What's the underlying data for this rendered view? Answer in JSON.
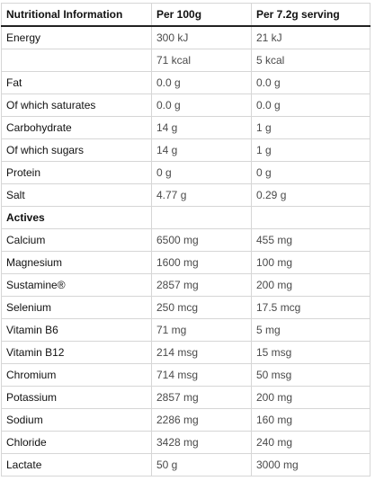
{
  "headers": [
    "Nutritional Information",
    "Per 100g",
    "Per 7.2g serving"
  ],
  "rows": [
    {
      "label": "Energy",
      "per100": "300 kJ",
      "perServing": "21 kJ"
    },
    {
      "label": "",
      "per100": "71 kcal",
      "perServing": "5 kcal"
    },
    {
      "label": "Fat",
      "per100": "0.0 g",
      "perServing": "0.0 g"
    },
    {
      "label": "Of which saturates",
      "per100": "0.0 g",
      "perServing": "0.0 g"
    },
    {
      "label": "Carbohydrate",
      "per100": "14 g",
      "perServing": "1 g"
    },
    {
      "label": "Of which sugars",
      "per100": "14 g",
      "perServing": "1 g"
    },
    {
      "label": "Protein",
      "per100": "0 g",
      "perServing": "0 g"
    },
    {
      "label": "Salt",
      "per100": "4.77 g",
      "perServing": "0.29 g"
    },
    {
      "label": "Actives",
      "per100": "",
      "perServing": "",
      "section": true
    },
    {
      "label": "Calcium",
      "per100": "6500 mg",
      "perServing": "455 mg"
    },
    {
      "label": "Magnesium",
      "per100": "1600 mg",
      "perServing": "100 mg"
    },
    {
      "label": "Sustamine®",
      "per100": "2857 mg",
      "perServing": "200 mg"
    },
    {
      "label": "Selenium",
      "per100": "250 mcg",
      "perServing": "17.5 mcg"
    },
    {
      "label": "Vitamin B6",
      "per100": "71 mg",
      "perServing": "5 mg"
    },
    {
      "label": "Vitamin B12",
      "per100": "214 msg",
      "perServing": "15 msg"
    },
    {
      "label": "Chromium",
      "per100": "714 msg",
      "perServing": "50 msg"
    },
    {
      "label": "Potassium",
      "per100": "2857 mg",
      "perServing": "200 mg"
    },
    {
      "label": "Sodium",
      "per100": "2286 mg",
      "perServing": "160 mg"
    },
    {
      "label": "Chloride",
      "per100": "3428 mg",
      "perServing": "240 mg"
    },
    {
      "label": "Lactate",
      "per100": "50 g",
      "perServing": "3000 mg"
    }
  ]
}
